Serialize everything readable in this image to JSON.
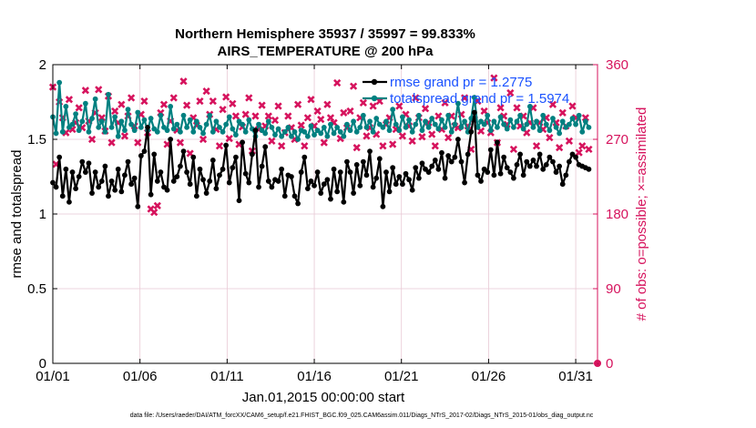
{
  "chart_data": {
    "type": "line",
    "title": "Northern Hemisphere 35937 / 35997 = 99.833%",
    "subtitle": "AIRS_TEMPERATURE @ 200 hPa",
    "xlabel": "Jan.01,2015 00:00:00 start",
    "ylabel_left": "rmse and totalspread",
    "ylabel_right": "# of obs: o=possible; ×=assimilated",
    "footer": "data file: /Users/raeder/DAI/ATM_forcXX/CAM6_setup/f.e21.FHIST_BGC.f09_025.CAM6assim.011/Diags_NTrS_2017-02/Diags_NTrS_2015-01/obs_diag_output.nc",
    "x_range": [
      0,
      31.25
    ],
    "x_ticks": [
      0,
      5,
      10,
      15,
      20,
      25,
      30
    ],
    "x_tick_labels": [
      "01/01",
      "01/06",
      "01/11",
      "01/16",
      "01/21",
      "01/26",
      "01/31"
    ],
    "ylim_left": [
      0,
      2
    ],
    "y_ticks_left": [
      "0",
      "0.5",
      "1",
      "1.5",
      "2"
    ],
    "ylim_right": [
      0,
      360
    ],
    "y_ticks_right": [
      "0",
      "90",
      "180",
      "270",
      "360"
    ],
    "grid": true,
    "legend_position": "top-right",
    "colors": {
      "rmse": "#000000",
      "spread": "#008080",
      "obs": "#d6135d",
      "legend_text": "#1a52ff",
      "grid": "#e8c8d4"
    },
    "series": [
      {
        "name": "rmse grand pr = 1.2775",
        "axis": "left",
        "values": [
          1.21,
          1.18,
          1.38,
          1.12,
          1.3,
          1.08,
          1.28,
          1.17,
          1.25,
          1.35,
          1.28,
          1.34,
          1.14,
          1.28,
          1.18,
          1.22,
          1.32,
          1.12,
          1.22,
          1.16,
          1.3,
          1.15,
          1.26,
          1.35,
          1.2,
          1.24,
          1.05,
          1.39,
          1.42,
          1.58,
          1.13,
          1.4,
          1.22,
          1.28,
          1.18,
          1.16,
          1.5,
          1.22,
          1.25,
          1.32,
          1.42,
          1.28,
          1.2,
          1.38,
          1.12,
          1.3,
          1.23,
          1.14,
          1.22,
          1.36,
          1.17,
          1.26,
          1.3,
          1.46,
          1.21,
          1.31,
          1.38,
          1.09,
          1.48,
          1.27,
          1.21,
          1.4,
          1.56,
          1.18,
          1.32,
          1.45,
          1.22,
          1.18,
          1.23,
          1.22,
          1.3,
          1.12,
          1.26,
          1.25,
          1.12,
          1.07,
          1.28,
          1.38,
          1.17,
          1.22,
          1.19,
          1.28,
          1.14,
          1.2,
          1.23,
          1.1,
          1.3,
          1.15,
          1.28,
          1.08,
          1.35,
          1.28,
          1.14,
          1.33,
          1.19,
          1.35,
          1.26,
          1.42,
          1.18,
          1.24,
          1.37,
          1.05,
          1.28,
          1.15,
          1.31,
          1.2,
          1.25,
          1.2,
          1.27,
          1.23,
          1.16,
          1.31,
          1.24,
          1.34,
          1.3,
          1.28,
          1.32,
          1.36,
          1.3,
          1.41,
          1.24,
          1.39,
          1.35,
          1.38,
          1.5,
          1.35,
          1.21,
          1.4,
          1.55,
          1.68,
          1.26,
          1.22,
          1.3,
          1.28,
          1.43,
          1.26,
          1.48,
          1.27,
          1.38,
          1.31,
          1.28,
          1.24,
          1.33,
          1.4,
          1.26,
          1.35,
          1.32,
          1.36,
          1.32,
          1.4,
          1.3,
          1.33,
          1.38,
          1.35,
          1.28,
          1.32,
          1.2,
          1.26,
          1.35,
          1.4,
          1.38,
          1.33,
          1.32,
          1.31,
          1.3
        ],
        "color": "#000000",
        "marker": "dot"
      },
      {
        "name": "totalspread grand pr = 1.5974",
        "axis": "left",
        "values": [
          1.65,
          1.54,
          1.88,
          1.55,
          1.72,
          1.58,
          1.6,
          1.67,
          1.56,
          1.62,
          1.74,
          1.55,
          1.64,
          1.77,
          1.58,
          1.62,
          1.55,
          1.8,
          1.58,
          1.65,
          1.52,
          1.62,
          1.56,
          1.7,
          1.6,
          1.56,
          1.68,
          1.58,
          1.63,
          1.56,
          1.64,
          1.57,
          1.55,
          1.66,
          1.58,
          1.56,
          1.72,
          1.57,
          1.6,
          1.55,
          1.66,
          1.58,
          1.63,
          1.55,
          1.62,
          1.58,
          1.54,
          1.6,
          1.66,
          1.55,
          1.62,
          1.58,
          1.55,
          1.6,
          1.65,
          1.57,
          1.53,
          1.62,
          1.6,
          1.55,
          1.63,
          1.57,
          1.52,
          1.6,
          1.56,
          1.54,
          1.62,
          1.58,
          1.53,
          1.57,
          1.52,
          1.55,
          1.58,
          1.52,
          1.55,
          1.5,
          1.56,
          1.55,
          1.52,
          1.59,
          1.53,
          1.56,
          1.54,
          1.58,
          1.52,
          1.6,
          1.54,
          1.58,
          1.55,
          1.52,
          1.6,
          1.56,
          1.62,
          1.55,
          1.58,
          1.66,
          1.58,
          1.62,
          1.55,
          1.64,
          1.6,
          1.58,
          1.62,
          1.56,
          1.7,
          1.6,
          1.56,
          1.65,
          1.58,
          1.63,
          1.55,
          1.6,
          1.66,
          1.56,
          1.62,
          1.58,
          1.64,
          1.6,
          1.57,
          1.63,
          1.58,
          1.66,
          1.55,
          1.6,
          1.74,
          1.58,
          1.62,
          1.55,
          1.64,
          1.78,
          1.58,
          1.62,
          1.6,
          1.66,
          1.56,
          1.62,
          1.58,
          1.65,
          1.6,
          1.57,
          1.63,
          1.58,
          1.62,
          1.66,
          1.57,
          1.6,
          1.72,
          1.58,
          1.62,
          1.56,
          1.66,
          1.6,
          1.56,
          1.64,
          1.58,
          1.54,
          1.62,
          1.58,
          1.6,
          1.64,
          1.6,
          1.66,
          1.55,
          1.62,
          1.58
        ],
        "color": "#008080",
        "marker": "dot"
      },
      {
        "name": "obs assimilated",
        "axis": "right",
        "values": [
          333,
          240,
          315,
          296,
          278,
          318,
          282,
          290,
          308,
          284,
          329,
          292,
          270,
          302,
          330,
          296,
          280,
          322,
          266,
          304,
          290,
          312,
          274,
          298,
          320,
          286,
          266,
          300,
          316,
          278,
          186,
          182,
          190,
          302,
          312,
          264,
          292,
          320,
          281,
          266,
          340,
          311,
          253,
          296,
          287,
          316,
          270,
          328,
          300,
          316,
          282,
          262,
          306,
          321,
          271,
          313,
          298,
          264,
          285,
          300,
          320,
          256,
          298,
          282,
          311,
          286,
          298,
          268,
          293,
          310,
          262,
          278,
          298,
          284,
          270,
          312,
          287,
          262,
          296,
          318,
          286,
          304,
          294,
          266,
          312,
          296,
          290,
          338,
          271,
          302,
          284,
          304,
          334,
          260,
          296,
          314,
          274,
          284,
          310,
          276,
          316,
          262,
          288,
          296,
          264,
          282,
          310,
          274,
          300,
          286,
          268,
          320,
          296,
          273,
          307,
          290,
          276,
          262,
          298,
          282,
          314,
          272,
          298,
          286,
          284,
          300,
          320,
          286,
          258,
          294,
          316,
          280,
          304,
          290,
          278,
          344,
          266,
          308,
          298,
          288,
          326,
          258,
          308,
          286,
          298,
          278,
          290,
          308,
          262,
          290,
          282,
          296,
          272,
          312,
          290,
          260,
          302,
          286,
          268,
          310,
          296,
          254,
          262,
          296,
          258
        ],
        "color": "#d6135d",
        "marker": "x"
      }
    ],
    "obs_possible_marker": {
      "x": 31.25,
      "y": 0
    },
    "legend": [
      {
        "label": "rmse grand pr = 1.2775",
        "color": "#000000"
      },
      {
        "label": "totalspread grand pr = 1.5974",
        "color": "#008080"
      }
    ]
  }
}
